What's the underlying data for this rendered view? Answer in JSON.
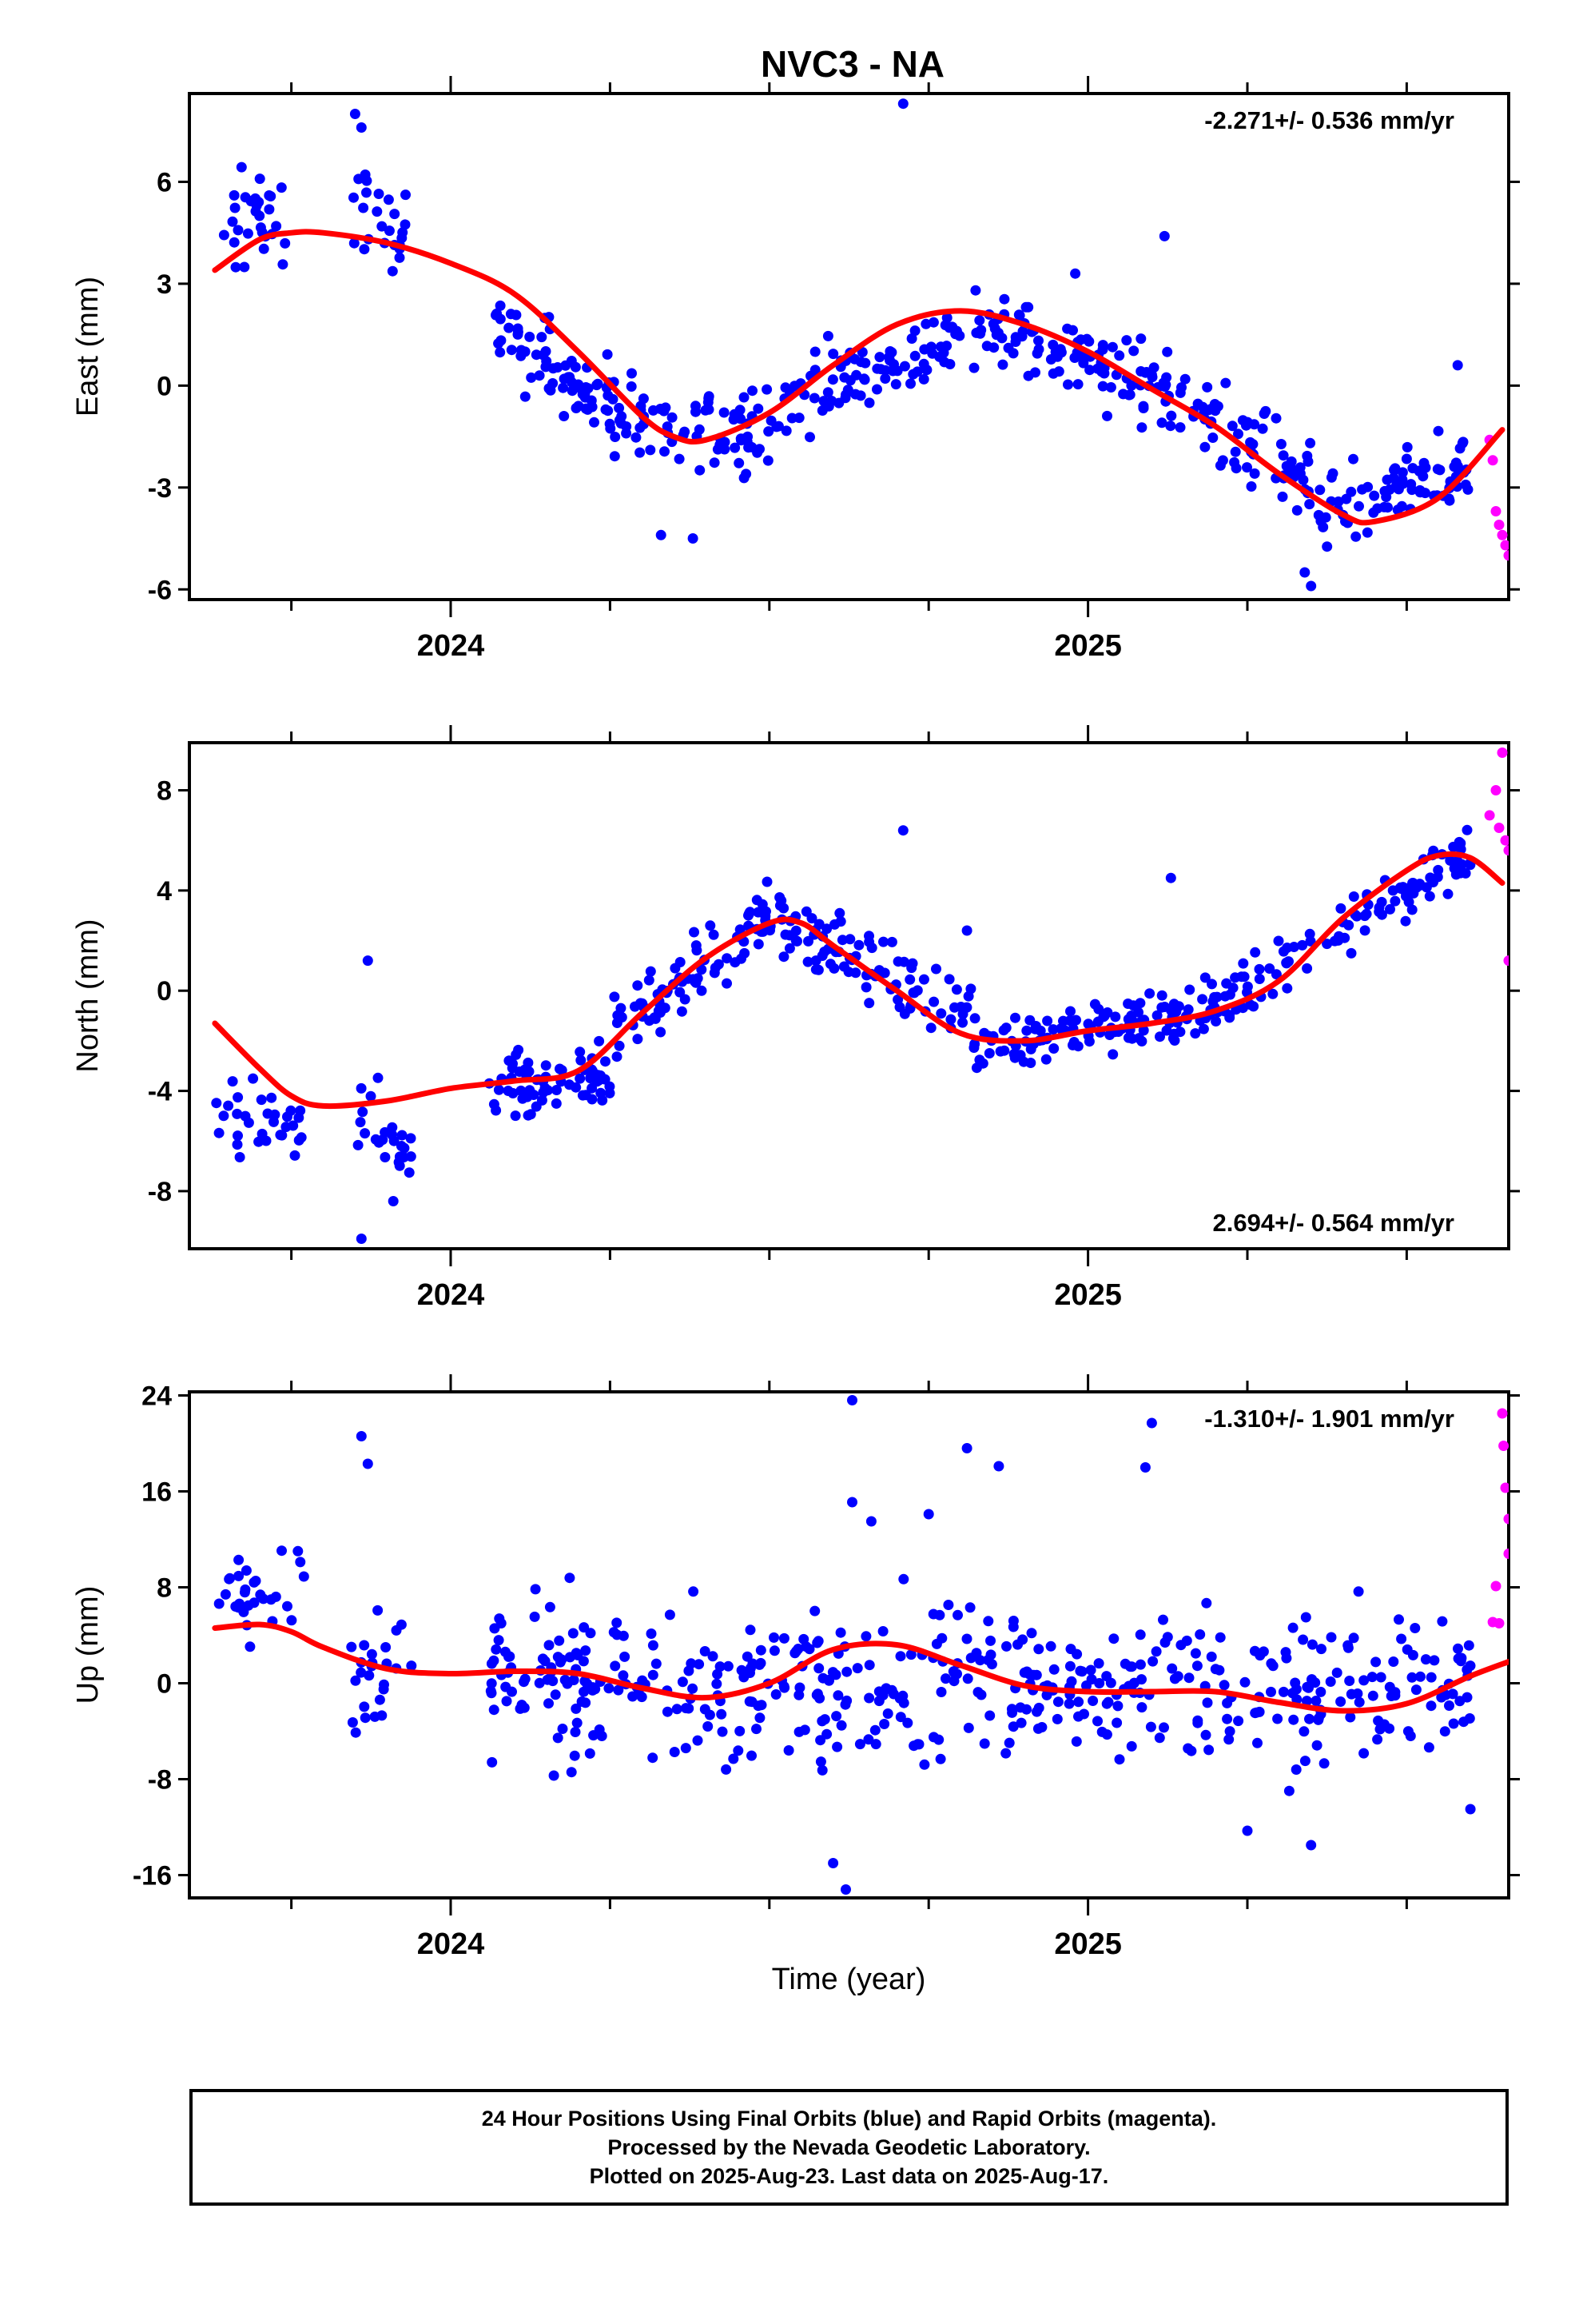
{
  "title": "NVC3 - NA",
  "xlabel": "Time (year)",
  "footer": {
    "lines": [
      "24 Hour Positions Using Final Orbits (blue) and Rapid Orbits (magenta).",
      "Processed by the Nevada Geodetic Laboratory.",
      "Plotted on 2025-Aug-23. Last data on 2025-Aug-17."
    ]
  },
  "colors": {
    "final": "#0000ff",
    "rapid": "#ff00ff",
    "fit": "#ff0000",
    "axis": "#000000"
  },
  "chart_data": [
    {
      "type": "scatter",
      "ylabel": "East (mm)",
      "rate_label": "-2.271+/- 0.536 mm/yr",
      "rate_position": "top-right",
      "xlim": [
        2023.59,
        2025.66
      ],
      "ylim": [
        -6.3,
        8.6
      ],
      "yticks": [
        -6,
        -3,
        0,
        3,
        6
      ],
      "ytick_labels": [
        "-6",
        "-3",
        "0",
        "3",
        "6"
      ],
      "xticks": [
        2024,
        2025
      ],
      "xtick_labels": [
        "2024",
        "2025"
      ],
      "trend": {
        "x": [
          2023.63,
          2023.7,
          2023.75,
          2023.8,
          2023.9,
          2024.0,
          2024.1,
          2024.2,
          2024.3,
          2024.35,
          2024.4,
          2024.5,
          2024.6,
          2024.7,
          2024.8,
          2024.9,
          2025.0,
          2025.1,
          2025.2,
          2025.3,
          2025.4,
          2025.45,
          2025.55,
          2025.65
        ],
        "y": [
          3.4,
          4.3,
          4.5,
          4.5,
          4.2,
          3.6,
          2.7,
          1.0,
          -0.9,
          -1.5,
          -1.6,
          -0.8,
          0.6,
          1.8,
          2.2,
          1.8,
          1.0,
          -0.1,
          -1.2,
          -2.6,
          -3.8,
          -4.0,
          -3.3,
          -1.3
        ]
      },
      "final_series": [
        {
          "x0": 2023.63,
          "x1": 2023.76,
          "y0": 4.6,
          "y1": 4.9,
          "n": 30,
          "spread": 2.8
        },
        {
          "x0": 2023.84,
          "x1": 2023.93,
          "y0": 5.2,
          "y1": 4.7,
          "n": 25,
          "spread": 2.4
        },
        {
          "x0": 2024.07,
          "x1": 2024.25,
          "y0": 1.6,
          "y1": -0.5,
          "n": 70,
          "spread": 2.2
        },
        {
          "x0": 2024.25,
          "x1": 2024.48,
          "y0": -0.8,
          "y1": -1.4,
          "n": 70,
          "spread": 2.2
        },
        {
          "x0": 2024.48,
          "x1": 2024.8,
          "y0": -1.0,
          "y1": 1.5,
          "n": 95,
          "spread": 2.2
        },
        {
          "x0": 2024.82,
          "x1": 2025.1,
          "y0": 1.8,
          "y1": 0.2,
          "n": 90,
          "spread": 2.2
        },
        {
          "x0": 2025.1,
          "x1": 2025.35,
          "y0": 0.0,
          "y1": -2.7,
          "n": 80,
          "spread": 2.2
        },
        {
          "x0": 2025.36,
          "x1": 2025.6,
          "y0": -4.0,
          "y1": -2.4,
          "n": 80,
          "spread": 2.2
        }
      ],
      "final_outliers": [
        [
          2023.85,
          8.0
        ],
        [
          2023.86,
          7.6
        ],
        [
          2024.71,
          8.3
        ],
        [
          2024.98,
          3.3
        ],
        [
          2025.12,
          4.4
        ],
        [
          2025.35,
          -5.9
        ],
        [
          2025.34,
          -5.5
        ],
        [
          2024.33,
          -4.4
        ],
        [
          2024.38,
          -4.5
        ],
        [
          2025.58,
          0.6
        ]
      ],
      "rapid": [
        [
          2025.63,
          -1.6
        ],
        [
          2025.635,
          -2.2
        ],
        [
          2025.64,
          -3.7
        ],
        [
          2025.645,
          -4.1
        ],
        [
          2025.65,
          -4.4
        ],
        [
          2025.655,
          -4.7
        ],
        [
          2025.66,
          -5.0
        ]
      ]
    },
    {
      "type": "scatter",
      "ylabel": "North (mm)",
      "rate_label": "2.694+/- 0.564 mm/yr",
      "rate_position": "bottom-right",
      "xlim": [
        2023.59,
        2025.66
      ],
      "ylim": [
        -10.3,
        9.9
      ],
      "yticks": [
        -8,
        -4,
        0,
        4,
        8
      ],
      "ytick_labels": [
        "-8",
        "-4",
        "0",
        "4",
        "8"
      ],
      "xticks": [
        2024,
        2025
      ],
      "xtick_labels": [
        "2024",
        "2025"
      ],
      "trend": {
        "x": [
          2023.63,
          2023.7,
          2023.75,
          2023.8,
          2023.9,
          2024.0,
          2024.1,
          2024.2,
          2024.3,
          2024.4,
          2024.5,
          2024.55,
          2024.6,
          2024.7,
          2024.8,
          2024.9,
          2025.0,
          2025.1,
          2025.2,
          2025.3,
          2025.4,
          2025.5,
          2025.55,
          2025.6,
          2025.65
        ],
        "y": [
          -1.3,
          -3.1,
          -4.2,
          -4.6,
          -4.4,
          -3.9,
          -3.6,
          -3.2,
          -0.9,
          1.3,
          2.7,
          2.7,
          1.8,
          0.0,
          -1.7,
          -2.0,
          -1.6,
          -1.3,
          -0.8,
          0.4,
          2.9,
          4.8,
          5.4,
          5.3,
          4.3
        ]
      },
      "final_series": [
        {
          "x0": 2023.63,
          "x1": 2023.77,
          "y0": -5.0,
          "y1": -5.6,
          "n": 32,
          "spread": 2.6
        },
        {
          "x0": 2023.85,
          "x1": 2023.94,
          "y0": -4.8,
          "y1": -6.6,
          "n": 25,
          "spread": 3.0
        },
        {
          "x0": 2024.06,
          "x1": 2024.25,
          "y0": -4.0,
          "y1": -3.2,
          "n": 70,
          "spread": 2.4
        },
        {
          "x0": 2024.25,
          "x1": 2024.5,
          "y0": -2.0,
          "y1": 3.2,
          "n": 80,
          "spread": 2.4
        },
        {
          "x0": 2024.5,
          "x1": 2024.82,
          "y0": 3.0,
          "y1": -1.0,
          "n": 95,
          "spread": 2.4
        },
        {
          "x0": 2024.82,
          "x1": 2025.18,
          "y0": -2.2,
          "y1": -0.8,
          "n": 110,
          "spread": 2.2
        },
        {
          "x0": 2025.18,
          "x1": 2025.6,
          "y0": -0.9,
          "y1": 5.6,
          "n": 120,
          "spread": 2.2
        }
      ],
      "final_outliers": [
        [
          2023.87,
          1.2
        ],
        [
          2023.86,
          -9.9
        ],
        [
          2023.91,
          -8.4
        ],
        [
          2024.71,
          6.4
        ],
        [
          2025.13,
          4.5
        ],
        [
          2024.81,
          2.4
        ]
      ],
      "rapid": [
        [
          2025.63,
          7.0
        ],
        [
          2025.64,
          8.0
        ],
        [
          2025.645,
          6.5
        ],
        [
          2025.65,
          9.5
        ],
        [
          2025.655,
          6.0
        ],
        [
          2025.66,
          5.6
        ],
        [
          2025.66,
          1.2
        ]
      ]
    },
    {
      "type": "scatter",
      "ylabel": "Up (mm)",
      "rate_label": "-1.310+/- 1.901 mm/yr",
      "rate_position": "top-right",
      "xlim": [
        2023.59,
        2025.66
      ],
      "ylim": [
        -17.9,
        24.3
      ],
      "yticks": [
        -16,
        -8,
        0,
        8,
        16,
        24
      ],
      "ytick_labels": [
        "-16",
        "-8",
        "0",
        "8",
        "16",
        "24"
      ],
      "xticks": [
        2024,
        2025
      ],
      "xtick_labels": [
        "2024",
        "2025"
      ],
      "trend": {
        "x": [
          2023.63,
          2023.7,
          2023.75,
          2023.8,
          2023.9,
          2024.0,
          2024.1,
          2024.2,
          2024.3,
          2024.4,
          2024.5,
          2024.6,
          2024.7,
          2024.8,
          2024.9,
          2025.0,
          2025.1,
          2025.2,
          2025.3,
          2025.4,
          2025.5,
          2025.6,
          2025.66
        ],
        "y": [
          4.6,
          4.9,
          4.3,
          3.0,
          1.2,
          0.8,
          1.0,
          0.8,
          -0.4,
          -1.2,
          0.0,
          2.8,
          3.2,
          1.5,
          -0.2,
          -0.7,
          -0.7,
          -0.7,
          -1.6,
          -2.3,
          -1.7,
          0.6,
          1.8
        ]
      },
      "final_series": [
        {
          "x0": 2023.63,
          "x1": 2023.77,
          "y0": 7.0,
          "y1": 8.0,
          "n": 30,
          "spread": 9.0
        },
        {
          "x0": 2023.84,
          "x1": 2023.94,
          "y0": 0.5,
          "y1": 1.5,
          "n": 25,
          "spread": 9.0
        },
        {
          "x0": 2024.06,
          "x1": 2024.5,
          "y0": 0.5,
          "y1": -1.0,
          "n": 150,
          "spread": 11.0
        },
        {
          "x0": 2024.5,
          "x1": 2024.82,
          "y0": 0.5,
          "y1": 1.0,
          "n": 100,
          "spread": 12.0
        },
        {
          "x0": 2024.82,
          "x1": 2025.25,
          "y0": -0.5,
          "y1": -0.7,
          "n": 130,
          "spread": 11.0
        },
        {
          "x0": 2025.25,
          "x1": 2025.6,
          "y0": -1.5,
          "y1": 0.0,
          "n": 110,
          "spread": 11.0
        }
      ],
      "final_outliers": [
        [
          2023.86,
          20.6
        ],
        [
          2023.87,
          18.3
        ],
        [
          2024.63,
          23.6
        ],
        [
          2024.81,
          19.6
        ],
        [
          2024.86,
          18.1
        ],
        [
          2025.1,
          21.7
        ],
        [
          2025.09,
          18.0
        ],
        [
          2024.62,
          -17.2
        ],
        [
          2024.6,
          -15.0
        ],
        [
          2025.35,
          -13.5
        ],
        [
          2025.25,
          -12.3
        ],
        [
          2025.6,
          -10.5
        ],
        [
          2024.63,
          15.1
        ],
        [
          2024.66,
          13.5
        ],
        [
          2024.75,
          14.1
        ]
      ],
      "rapid": [
        [
          2025.635,
          5.1
        ],
        [
          2025.64,
          8.1
        ],
        [
          2025.645,
          5.0
        ],
        [
          2025.65,
          22.5
        ],
        [
          2025.652,
          19.8
        ],
        [
          2025.655,
          16.3
        ],
        [
          2025.66,
          13.7
        ],
        [
          2025.66,
          10.8
        ]
      ]
    }
  ]
}
